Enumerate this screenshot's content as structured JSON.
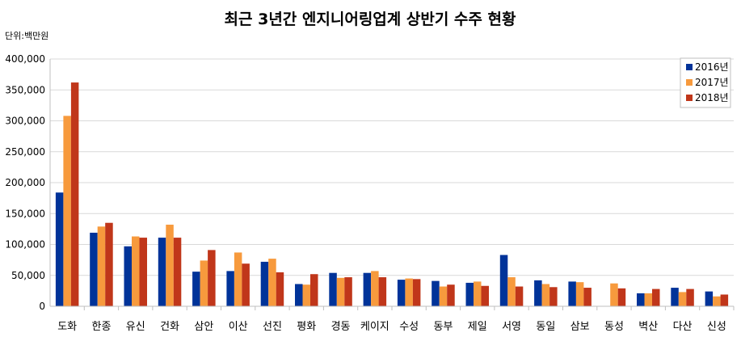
{
  "chart_data": {
    "type": "bar",
    "title": "최근 3년간 엔지니어링업계 상반기 수주 현황",
    "unit_label": "단위:백만원",
    "ylim": [
      0,
      400000
    ],
    "y_ticks": [
      "0",
      "50,000",
      "100,000",
      "150,000",
      "200,000",
      "250,000",
      "300,000",
      "350,000",
      "400,000"
    ],
    "grid": true,
    "legend_position": "top-right",
    "categories": [
      "도화",
      "한종",
      "유신",
      "건화",
      "삼안",
      "이산",
      "선진",
      "평화",
      "경동",
      "케이지",
      "수성",
      "동부",
      "제일",
      "서영",
      "동일",
      "삼보",
      "동성",
      "벽산",
      "다산",
      "신성"
    ],
    "series": [
      {
        "name": "2016년",
        "color": "#003399",
        "values": [
          184000,
          119000,
          97000,
          111000,
          56000,
          57000,
          72000,
          36000,
          54000,
          54000,
          43000,
          41000,
          38000,
          83000,
          42000,
          40000,
          null,
          21000,
          30000,
          24000
        ]
      },
      {
        "name": "2017년",
        "color": "#f79a3d",
        "values": [
          308000,
          129000,
          113000,
          132000,
          74000,
          87000,
          77000,
          35000,
          46000,
          57000,
          45000,
          32000,
          40000,
          47000,
          36000,
          39000,
          37000,
          21000,
          23000,
          16000
        ]
      },
      {
        "name": "2018년",
        "color": "#c0361a",
        "values": [
          362000,
          135000,
          111000,
          111000,
          91000,
          69000,
          55000,
          52000,
          47000,
          47000,
          44000,
          35000,
          33000,
          32000,
          31000,
          30000,
          29000,
          28000,
          28000,
          19000
        ]
      }
    ]
  }
}
